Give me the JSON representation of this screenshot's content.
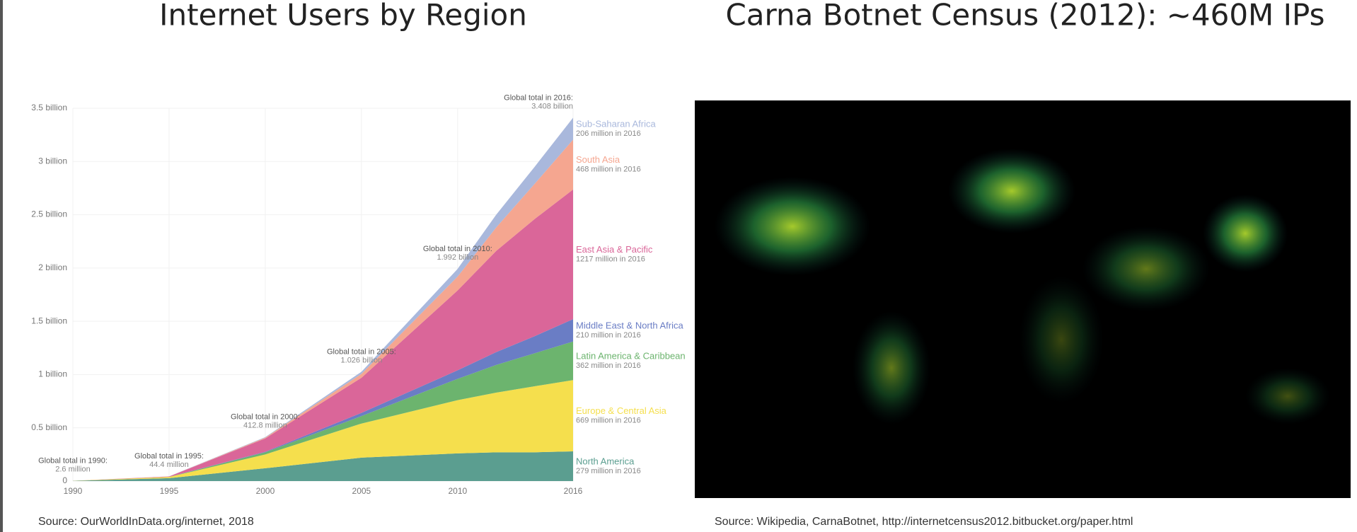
{
  "chart_data": {
    "type": "stacked_area",
    "x": [
      1990,
      1995,
      2000,
      2005,
      2010,
      2012,
      2014,
      2016
    ],
    "xlim": [
      1990,
      2016
    ],
    "xticks": [
      1990,
      1995,
      2000,
      2005,
      2010,
      2016
    ],
    "ylim": [
      0,
      3.5
    ],
    "yticks": [
      0,
      {
        "value": 0.5,
        "label": "0.5 billion"
      },
      {
        "value": 1,
        "label": "1 billion"
      },
      {
        "value": 1.5,
        "label": "1.5 billion"
      },
      {
        "value": 2,
        "label": "2 billion"
      },
      {
        "value": 2.5,
        "label": "2.5 billion"
      },
      {
        "value": 3,
        "label": "3 billion"
      },
      {
        "value": 3.5,
        "label": "3.5 billion"
      }
    ],
    "grid": true,
    "series": [
      {
        "name": "North America",
        "label_2016": "279 million in 2016",
        "color": "#5b9e90",
        "values": [
          0.002,
          0.027,
          0.12,
          0.22,
          0.26,
          0.27,
          0.27,
          0.279
        ]
      },
      {
        "name": "Europe & Central Asia",
        "label_2016": "669 million in 2016",
        "color": "#f5df4d",
        "values": [
          0.0006,
          0.011,
          0.13,
          0.32,
          0.5,
          0.56,
          0.62,
          0.669
        ]
      },
      {
        "name": "Latin America & Caribbean",
        "label_2016": "362 million in 2016",
        "color": "#6cb46e",
        "values": [
          0,
          0.001,
          0.02,
          0.07,
          0.2,
          0.26,
          0.31,
          0.362
        ]
      },
      {
        "name": "Middle East & North Africa",
        "label_2016": "210 million in 2016",
        "color": "#6a7dc5",
        "values": [
          0,
          0.0003,
          0.005,
          0.03,
          0.08,
          0.12,
          0.16,
          0.21
        ]
      },
      {
        "name": "East Asia & Pacific",
        "label_2016": "1217 million in 2016",
        "color": "#da6699",
        "values": [
          0,
          0.004,
          0.125,
          0.33,
          0.75,
          0.95,
          1.1,
          1.217
        ]
      },
      {
        "name": "South Asia",
        "label_2016": "468 million in 2016",
        "color": "#f5a690",
        "values": [
          0,
          0.0003,
          0.008,
          0.036,
          0.13,
          0.22,
          0.33,
          0.468
        ]
      },
      {
        "name": "Sub-Saharan Africa",
        "label_2016": "206 million in 2016",
        "color": "#a9b8dc",
        "values": [
          0,
          0.0008,
          0.005,
          0.02,
          0.072,
          0.12,
          0.16,
          0.206
        ]
      }
    ],
    "annotations": [
      {
        "x": 1990,
        "text": "Global total in 1990:",
        "sub": "2.6 million"
      },
      {
        "x": 1995,
        "text": "Global total in 1995:",
        "sub": "44.4 million"
      },
      {
        "x": 2000,
        "text": "Global total in 2000:",
        "sub": "412.8 million"
      },
      {
        "x": 2005,
        "text": "Global total in 2005:",
        "sub": "1.026 billion"
      },
      {
        "x": 2010,
        "text": "Global total in 2010:",
        "sub": "1.992 billion"
      },
      {
        "x": 2016,
        "text": "Global total in 2016:",
        "sub": "3.408 billion"
      }
    ]
  },
  "slide": {
    "left_title": "Internet Users by Region",
    "right_title": "Carna Botnet Census (2012): ~460M IPs",
    "left_source": "Source: OurWorldInData.org/internet,  2018",
    "right_source": "Source: Wikipedia, CarnaBotnet,  http://internetcensus2012.bitbucket.org/paper.html"
  }
}
